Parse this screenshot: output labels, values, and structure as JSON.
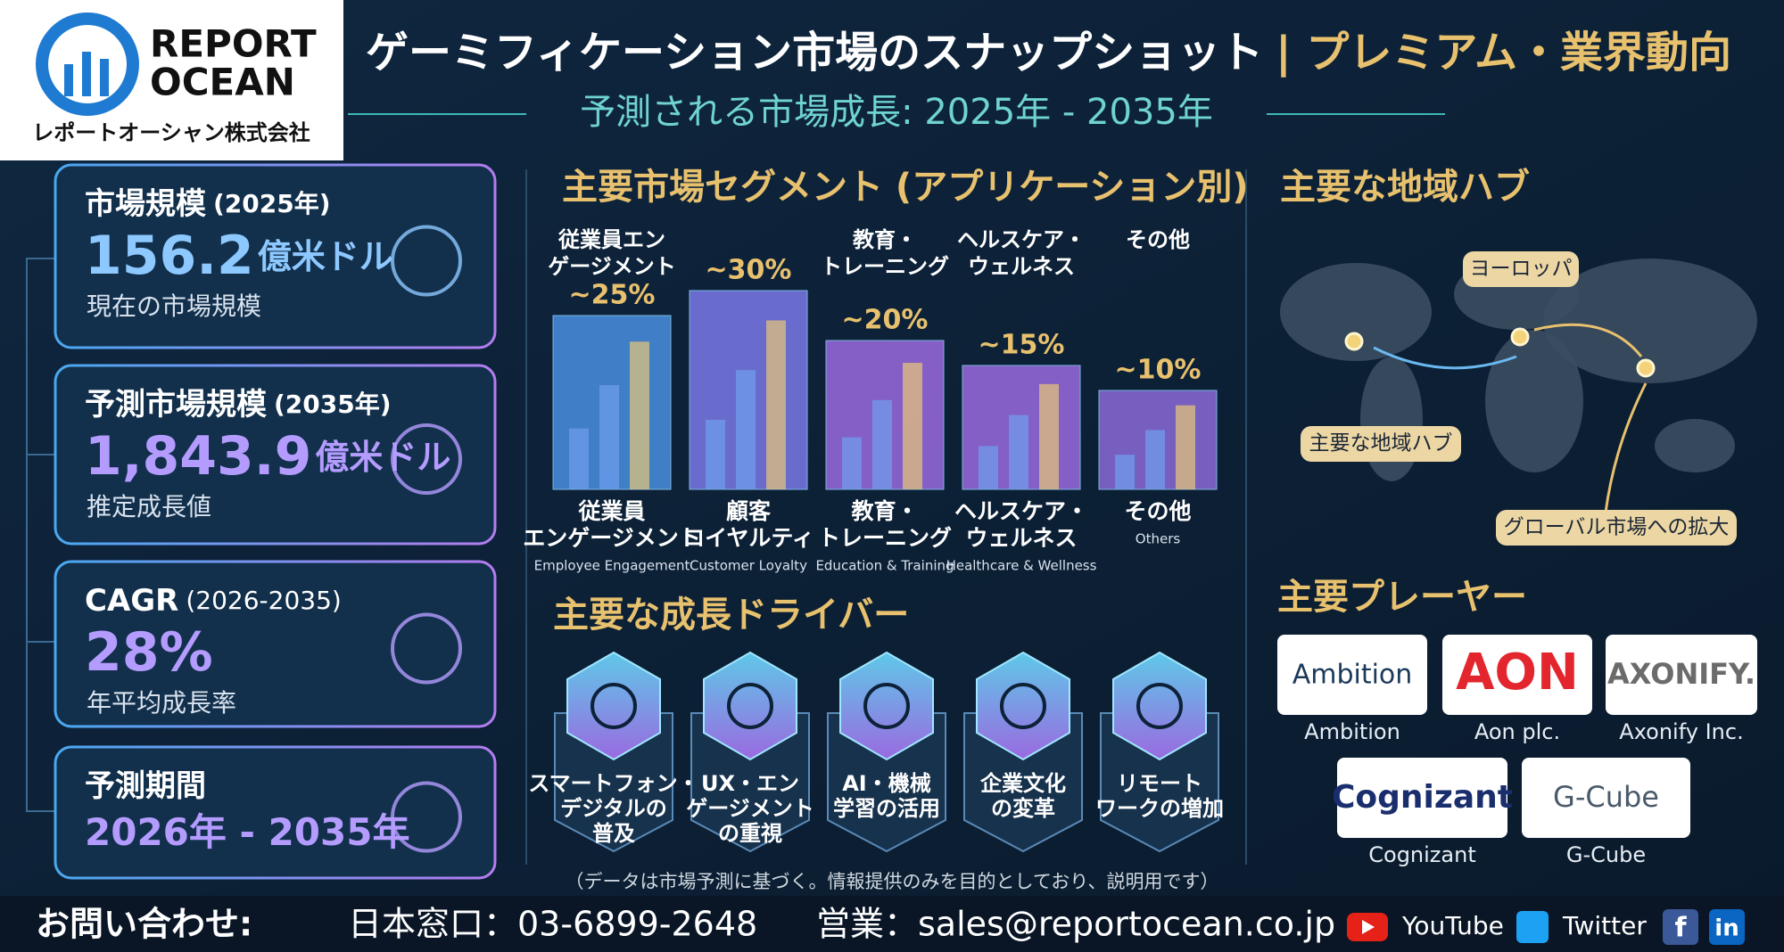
{
  "header": {
    "logo": {
      "brand_line1": "REPORT",
      "brand_line2": "OCEAN",
      "company": "レポートオーシャン株式会社"
    },
    "title": "ゲーミフィケーション市場のスナップショット",
    "title_suffix": "| プレミアム・業界動向",
    "subtitle": "予測される市場成長: 2025年 - 2035年"
  },
  "stats": [
    {
      "label": "市場規模",
      "period": "(2025年)",
      "value": "156.2",
      "unit": "億米ドル",
      "caption": "現在の市場規模"
    },
    {
      "label": "予測市場規模",
      "period": "(2035年)",
      "value": "1,843.9",
      "unit": "億米ドル",
      "caption": "推定成長値"
    },
    {
      "label": "CAGR",
      "period": "(2026-2035)",
      "value": "28%",
      "caption": "年平均成長率"
    },
    {
      "label": "予測期間",
      "value": "2026年 - 2035年"
    }
  ],
  "segments": {
    "title": "主要市場セグメント (アプリケーション別)",
    "items": [
      {
        "top_label": [
          "従業員エン",
          "ゲージメント"
        ],
        "share": 25,
        "share_label": "~25%",
        "name_ja": [
          "従業員",
          "エンゲージメント"
        ],
        "name_en": "Employee Engagement"
      },
      {
        "top_label": [],
        "share": 30,
        "share_label": "~30%",
        "name_ja": [
          "顧客",
          "ロイヤルティ"
        ],
        "name_en": "Customer Loyalty"
      },
      {
        "top_label": [
          "教育・",
          "トレーニング"
        ],
        "share": 20,
        "share_label": "~20%",
        "name_ja": [
          "教育・",
          "トレーニング"
        ],
        "name_en": "Education & Training"
      },
      {
        "top_label": [
          "ヘルスケア・",
          "ウェルネス"
        ],
        "share": 15,
        "share_label": "~15%",
        "name_ja": [
          "ヘルスケア・",
          "ウェルネス"
        ],
        "name_en": "Healthcare & Wellness"
      },
      {
        "top_label": [
          "その他"
        ],
        "share": 10,
        "share_label": "~10%",
        "name_ja": [
          "その他"
        ],
        "name_en": "Others"
      }
    ]
  },
  "drivers": {
    "title": "主要な成長ドライバー",
    "items": [
      [
        "スマートフォン・",
        "デジタルの",
        "普及"
      ],
      [
        "UX・エン",
        "ゲージメント",
        "の重視"
      ],
      [
        "AI・機械",
        "学習の活用"
      ],
      [
        "企業文化",
        "の変革"
      ],
      [
        "リモート",
        "ワークの増加"
      ]
    ]
  },
  "note": "（データは市場予測に基づく。情報提供のみを目的としており、説明用です）",
  "regions": {
    "title": "主要な地域ハブ",
    "callouts": [
      "ヨーロッパ",
      "主要な地域ハブ",
      "グローバル市場への拡大"
    ]
  },
  "players": {
    "title": "主要プレーヤー",
    "items": [
      {
        "logo": "Ambition",
        "name": "Ambition"
      },
      {
        "logo": "AON",
        "name": "Aon plc."
      },
      {
        "logo": "AXONIFY.",
        "name": "Axonify Inc."
      },
      {
        "logo": "Cognizant",
        "name": "Cognizant"
      },
      {
        "logo": "G-Cube",
        "name": "G-Cube"
      }
    ]
  },
  "footer": {
    "contact": "お問い合わせ:",
    "japan": "日本窓口：03-6899-2648",
    "sales": "営業：sales@reportocean.co.jp",
    "youtube": "YouTube",
    "twitter": "Twitter",
    "facebook": "f",
    "linkedin": "in"
  }
}
